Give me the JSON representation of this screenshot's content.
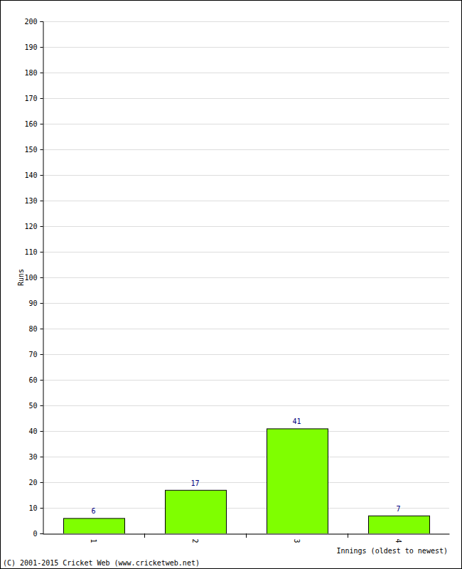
{
  "chart_data": {
    "type": "bar",
    "categories": [
      "1",
      "2",
      "3",
      "4"
    ],
    "values": [
      6,
      17,
      41,
      7
    ],
    "color": "#7fff00",
    "x_label": "Innings (oldest to newest)",
    "y_label": "Runs",
    "annotations": [
      "(C) 2001-2015 Cricket Web (www.cricketweb.net)"
    ],
    "ylim": [
      0,
      200
    ],
    "yticks": [
      0,
      10,
      20,
      30,
      40,
      50,
      60,
      70,
      80,
      90,
      100,
      110,
      120,
      130,
      140,
      150,
      160,
      170,
      180,
      190,
      200
    ],
    "grid": true,
    "data_labels": true
  }
}
